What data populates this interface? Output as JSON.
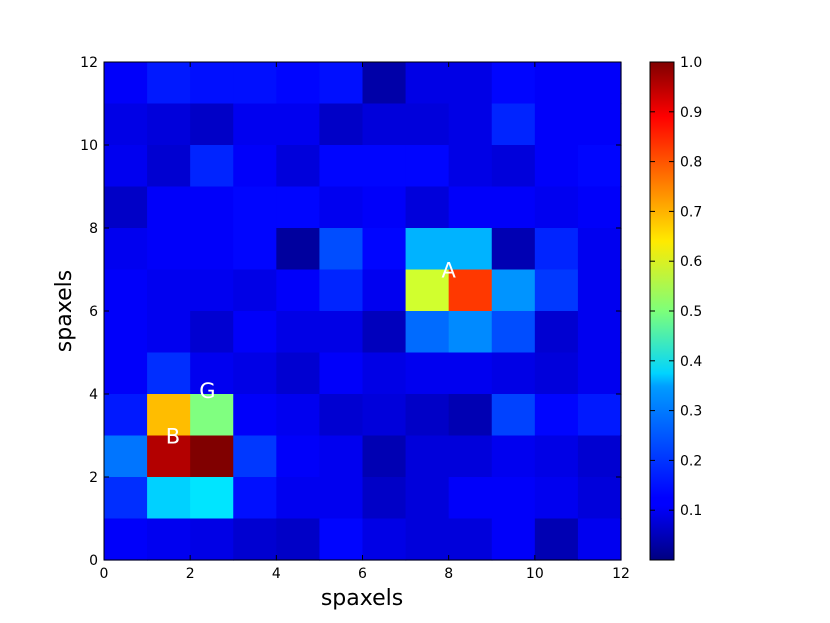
{
  "chart_data": {
    "type": "heatmap",
    "title": "",
    "xlabel": "spaxels",
    "ylabel": "spaxels",
    "xlim": [
      0,
      12
    ],
    "ylim": [
      0,
      12
    ],
    "x_ticks": [
      0,
      2,
      4,
      6,
      8,
      10,
      12
    ],
    "y_ticks": [
      0,
      2,
      4,
      6,
      8,
      10,
      12
    ],
    "colormap": "jet",
    "color_range": [
      0.0,
      1.0
    ],
    "colorbar_ticks": [
      "1.0",
      "0.9",
      "0.8",
      "0.7",
      "0.6",
      "0.5",
      "0.4",
      "0.3",
      "0.2",
      "0.1"
    ],
    "colorbar_tick_values": [
      1.0,
      0.9,
      0.8,
      0.7,
      0.6,
      0.5,
      0.4,
      0.3,
      0.2,
      0.1
    ],
    "row_order": "top-to-bottom (y = 11 down to y = 0)",
    "grid": [
      [
        0.12,
        0.15,
        0.14,
        0.14,
        0.13,
        0.14,
        0.04,
        0.1,
        0.1,
        0.13,
        0.12,
        0.12
      ],
      [
        0.1,
        0.09,
        0.07,
        0.11,
        0.11,
        0.07,
        0.09,
        0.09,
        0.1,
        0.16,
        0.12,
        0.12
      ],
      [
        0.11,
        0.08,
        0.16,
        0.12,
        0.09,
        0.13,
        0.13,
        0.13,
        0.1,
        0.09,
        0.12,
        0.13
      ],
      [
        0.07,
        0.12,
        0.12,
        0.13,
        0.13,
        0.11,
        0.12,
        0.09,
        0.12,
        0.12,
        0.11,
        0.12
      ],
      [
        0.11,
        0.12,
        0.12,
        0.13,
        0.03,
        0.2,
        0.13,
        0.3,
        0.3,
        0.05,
        0.16,
        0.11
      ],
      [
        0.12,
        0.11,
        0.11,
        0.1,
        0.12,
        0.16,
        0.11,
        0.58,
        0.82,
        0.27,
        0.18,
        0.11
      ],
      [
        0.12,
        0.11,
        0.08,
        0.12,
        0.1,
        0.1,
        0.06,
        0.23,
        0.26,
        0.2,
        0.08,
        0.11
      ],
      [
        0.12,
        0.17,
        0.11,
        0.1,
        0.08,
        0.12,
        0.1,
        0.11,
        0.11,
        0.1,
        0.09,
        0.11
      ],
      [
        0.15,
        0.69,
        0.5,
        0.12,
        0.11,
        0.08,
        0.09,
        0.07,
        0.05,
        0.19,
        0.13,
        0.15
      ],
      [
        0.24,
        0.95,
        1.0,
        0.18,
        0.12,
        0.11,
        0.05,
        0.09,
        0.09,
        0.11,
        0.1,
        0.08
      ],
      [
        0.17,
        0.33,
        0.35,
        0.14,
        0.11,
        0.11,
        0.07,
        0.09,
        0.12,
        0.12,
        0.11,
        0.09
      ],
      [
        0.12,
        0.11,
        0.1,
        0.08,
        0.07,
        0.13,
        0.1,
        0.09,
        0.09,
        0.12,
        0.05,
        0.11
      ]
    ],
    "annotations": [
      {
        "text": "A",
        "x": 8,
        "y": 7
      },
      {
        "text": "G",
        "x": 2.4,
        "y": 4.1
      },
      {
        "text": "B",
        "x": 1.6,
        "y": 3.0
      }
    ]
  }
}
